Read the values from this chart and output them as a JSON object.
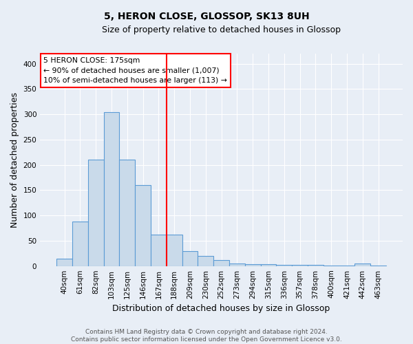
{
  "title": "5, HERON CLOSE, GLOSSOP, SK13 8UH",
  "subtitle": "Size of property relative to detached houses in Glossop",
  "xlabel": "Distribution of detached houses by size in Glossop",
  "ylabel": "Number of detached properties",
  "bar_labels": [
    "40sqm",
    "61sqm",
    "82sqm",
    "103sqm",
    "125sqm",
    "146sqm",
    "167sqm",
    "188sqm",
    "209sqm",
    "230sqm",
    "252sqm",
    "273sqm",
    "294sqm",
    "315sqm",
    "336sqm",
    "357sqm",
    "378sqm",
    "400sqm",
    "421sqm",
    "442sqm",
    "463sqm"
  ],
  "bar_values": [
    15,
    88,
    210,
    305,
    210,
    160,
    62,
    62,
    30,
    20,
    12,
    5,
    3,
    3,
    2,
    2,
    2,
    1,
    1,
    5,
    1
  ],
  "bar_color": "#c9daea",
  "bar_edge_color": "#5b9bd5",
  "vline_index": 7,
  "vline_color": "red",
  "annotation_text": "5 HERON CLOSE: 175sqm\n← 90% of detached houses are smaller (1,007)\n10% of semi-detached houses are larger (113) →",
  "annotation_box_color": "white",
  "annotation_box_edge_color": "red",
  "footer_text": "Contains HM Land Registry data © Crown copyright and database right 2024.\nContains public sector information licensed under the Open Government Licence v3.0.",
  "ylim": [
    0,
    420
  ],
  "yticks": [
    0,
    50,
    100,
    150,
    200,
    250,
    300,
    350,
    400
  ],
  "background_color": "#e8eef6",
  "grid_color": "#ffffff",
  "title_fontsize": 10,
  "subtitle_fontsize": 9,
  "ylabel_fontsize": 9,
  "xlabel_fontsize": 9,
  "tick_fontsize": 7.5,
  "footer_fontsize": 6.5
}
